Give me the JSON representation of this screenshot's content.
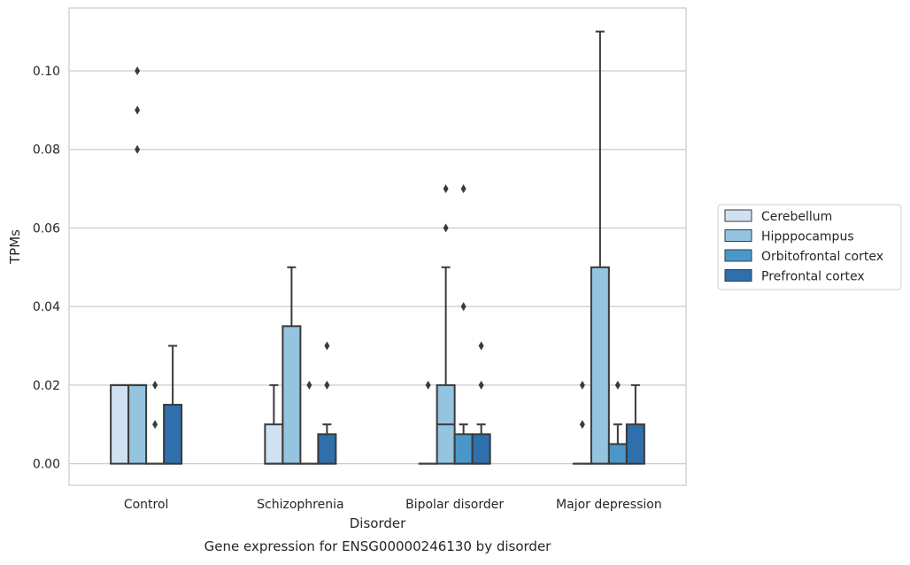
{
  "chart_data": {
    "type": "boxplot",
    "caption": "Gene expression for ENSG00000246130 by disorder",
    "xlabel": "Disorder",
    "ylabel": "TPMs",
    "ylim": [
      -0.0055,
      0.116
    ],
    "yticks": [
      0.0,
      0.02,
      0.04,
      0.06,
      0.08,
      0.1
    ],
    "ytick_labels": [
      "0.00",
      "0.02",
      "0.04",
      "0.06",
      "0.08",
      "0.10"
    ],
    "grid": "horizontal",
    "legend_position": "right",
    "categories": [
      "Control",
      "Schizophrenia",
      "Bipolar disorder",
      "Major depression"
    ],
    "series": [
      {
        "name": "Cerebellum",
        "color": "#d0e1f2",
        "boxes": [
          {
            "q1": 0.0,
            "median": 0.02,
            "q3": 0.02,
            "whislo": 0.0,
            "whishi": 0.02,
            "fliers": []
          },
          {
            "q1": 0.0,
            "median": 0.0,
            "q3": 0.01,
            "whislo": 0.0,
            "whishi": 0.02,
            "fliers": []
          },
          {
            "q1": 0.0,
            "median": 0.0,
            "q3": 0.0,
            "whislo": 0.0,
            "whishi": 0.0,
            "fliers": [
              0.02
            ]
          },
          {
            "q1": 0.0,
            "median": 0.0,
            "q3": 0.0,
            "whislo": 0.0,
            "whishi": 0.0,
            "fliers": [
              0.01,
              0.02
            ]
          }
        ]
      },
      {
        "name": "Hipppocampus",
        "color": "#94c4df",
        "boxes": [
          {
            "q1": 0.0,
            "median": 0.02,
            "q3": 0.02,
            "whislo": 0.0,
            "whishi": 0.02,
            "fliers": [
              0.08,
              0.09,
              0.1
            ]
          },
          {
            "q1": 0.0,
            "median": 0.0,
            "q3": 0.035,
            "whislo": 0.0,
            "whishi": 0.05,
            "fliers": []
          },
          {
            "q1": 0.0,
            "median": 0.01,
            "q3": 0.02,
            "whislo": 0.0,
            "whishi": 0.05,
            "fliers": [
              0.06,
              0.07
            ]
          },
          {
            "q1": 0.0,
            "median": 0.0,
            "q3": 0.05,
            "whislo": 0.0,
            "whishi": 0.11,
            "fliers": []
          }
        ]
      },
      {
        "name": "Orbitofrontal cortex",
        "color": "#4a98c9",
        "boxes": [
          {
            "q1": 0.0,
            "median": 0.0,
            "q3": 0.0,
            "whislo": 0.0,
            "whishi": 0.0,
            "fliers": [
              0.01,
              0.02
            ]
          },
          {
            "q1": 0.0,
            "median": 0.0,
            "q3": 0.0,
            "whislo": 0.0,
            "whishi": 0.0,
            "fliers": [
              0.02
            ]
          },
          {
            "q1": 0.0,
            "median": 0.0,
            "q3": 0.0075,
            "whislo": 0.0,
            "whishi": 0.01,
            "fliers": [
              0.04,
              0.07
            ]
          },
          {
            "q1": 0.0,
            "median": 0.0,
            "q3": 0.005,
            "whislo": 0.0,
            "whishi": 0.01,
            "fliers": [
              0.02
            ]
          }
        ]
      },
      {
        "name": "Prefrontal cortex",
        "color": "#2e6fac",
        "boxes": [
          {
            "q1": 0.0,
            "median": 0.0,
            "q3": 0.015,
            "whislo": 0.0,
            "whishi": 0.03,
            "fliers": []
          },
          {
            "q1": 0.0,
            "median": 0.0,
            "q3": 0.0075,
            "whislo": 0.0,
            "whishi": 0.01,
            "fliers": [
              0.02,
              0.03
            ]
          },
          {
            "q1": 0.0,
            "median": 0.0,
            "q3": 0.0075,
            "whislo": 0.0,
            "whishi": 0.01,
            "fliers": [
              0.02,
              0.03
            ]
          },
          {
            "q1": 0.0,
            "median": 0.0,
            "q3": 0.01,
            "whislo": 0.0,
            "whishi": 0.02,
            "fliers": []
          }
        ]
      }
    ]
  }
}
